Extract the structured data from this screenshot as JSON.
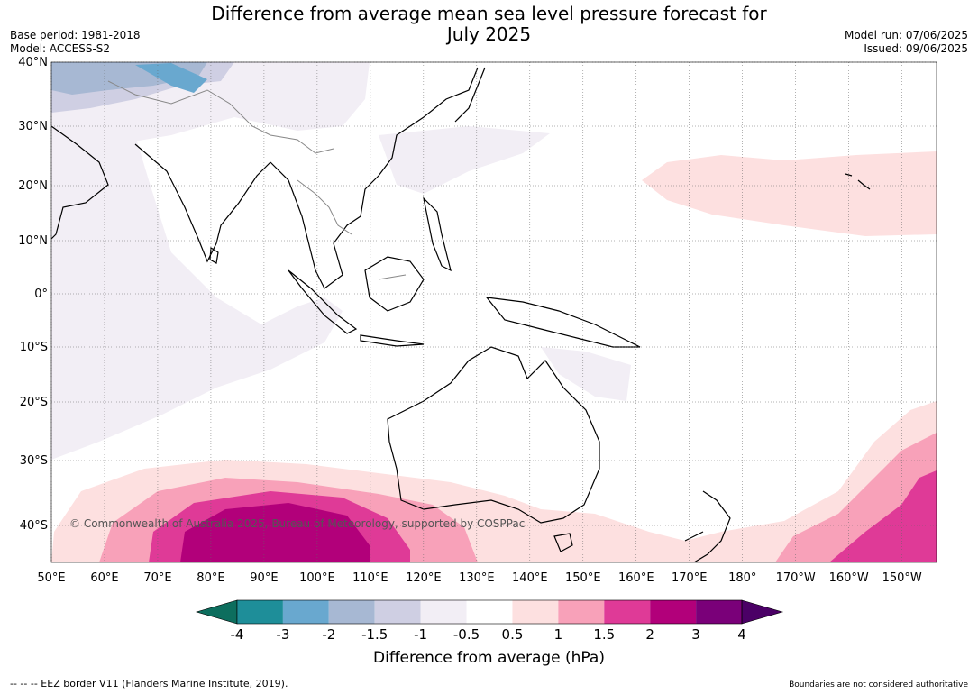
{
  "title": {
    "line1": "Difference from average mean sea level pressure forecast for",
    "line2": "July 2025"
  },
  "meta_left": {
    "base_period": "Base period: 1981-2018",
    "model": "Model: ACCESS-S2"
  },
  "meta_right": {
    "model_run": "Model run: 07/06/2025",
    "issued": "Issued: 09/06/2025"
  },
  "axes": {
    "lat_labels": [
      "40°N",
      "30°N",
      "20°N",
      "10°N",
      "0°",
      "10°S",
      "20°S",
      "30°S",
      "40°S"
    ],
    "lat_values": [
      40,
      30,
      20,
      10,
      0,
      -10,
      -20,
      -30,
      -40
    ],
    "lon_labels": [
      "50°E",
      "60°E",
      "70°E",
      "80°E",
      "90°E",
      "100°E",
      "110°E",
      "120°E",
      "130°E",
      "140°E",
      "150°E",
      "160°E",
      "170°E",
      "180°",
      "170°W",
      "160°W",
      "150°W"
    ],
    "lon_values": [
      50,
      60,
      70,
      80,
      90,
      100,
      110,
      120,
      130,
      140,
      150,
      160,
      170,
      180,
      190,
      200,
      210
    ]
  },
  "copyright": "© Commonwealth of Australia 2025, Bureau of Meteorology, supported by COSPPac",
  "colorbar": {
    "ticks": [
      "-4",
      "-3",
      "-2",
      "-1.5",
      "-1",
      "-0.5",
      "0.5",
      "1",
      "1.5",
      "2",
      "3",
      "4"
    ],
    "colors": [
      "#0d6e5e",
      "#1e8e99",
      "#69a8cf",
      "#a7b8d3",
      "#cfcfe3",
      "#f2eef5",
      "#ffffff",
      "#fde0e0",
      "#f8a1b9",
      "#df3a97",
      "#b2007a",
      "#7a0079",
      "#4b0066"
    ],
    "label": "Difference from average (hPa)"
  },
  "footer": {
    "left": "--  --  -- EEZ border V11 (Flanders Marine Institute, 2019).",
    "right": "Boundaries are not considered authoritative"
  }
}
